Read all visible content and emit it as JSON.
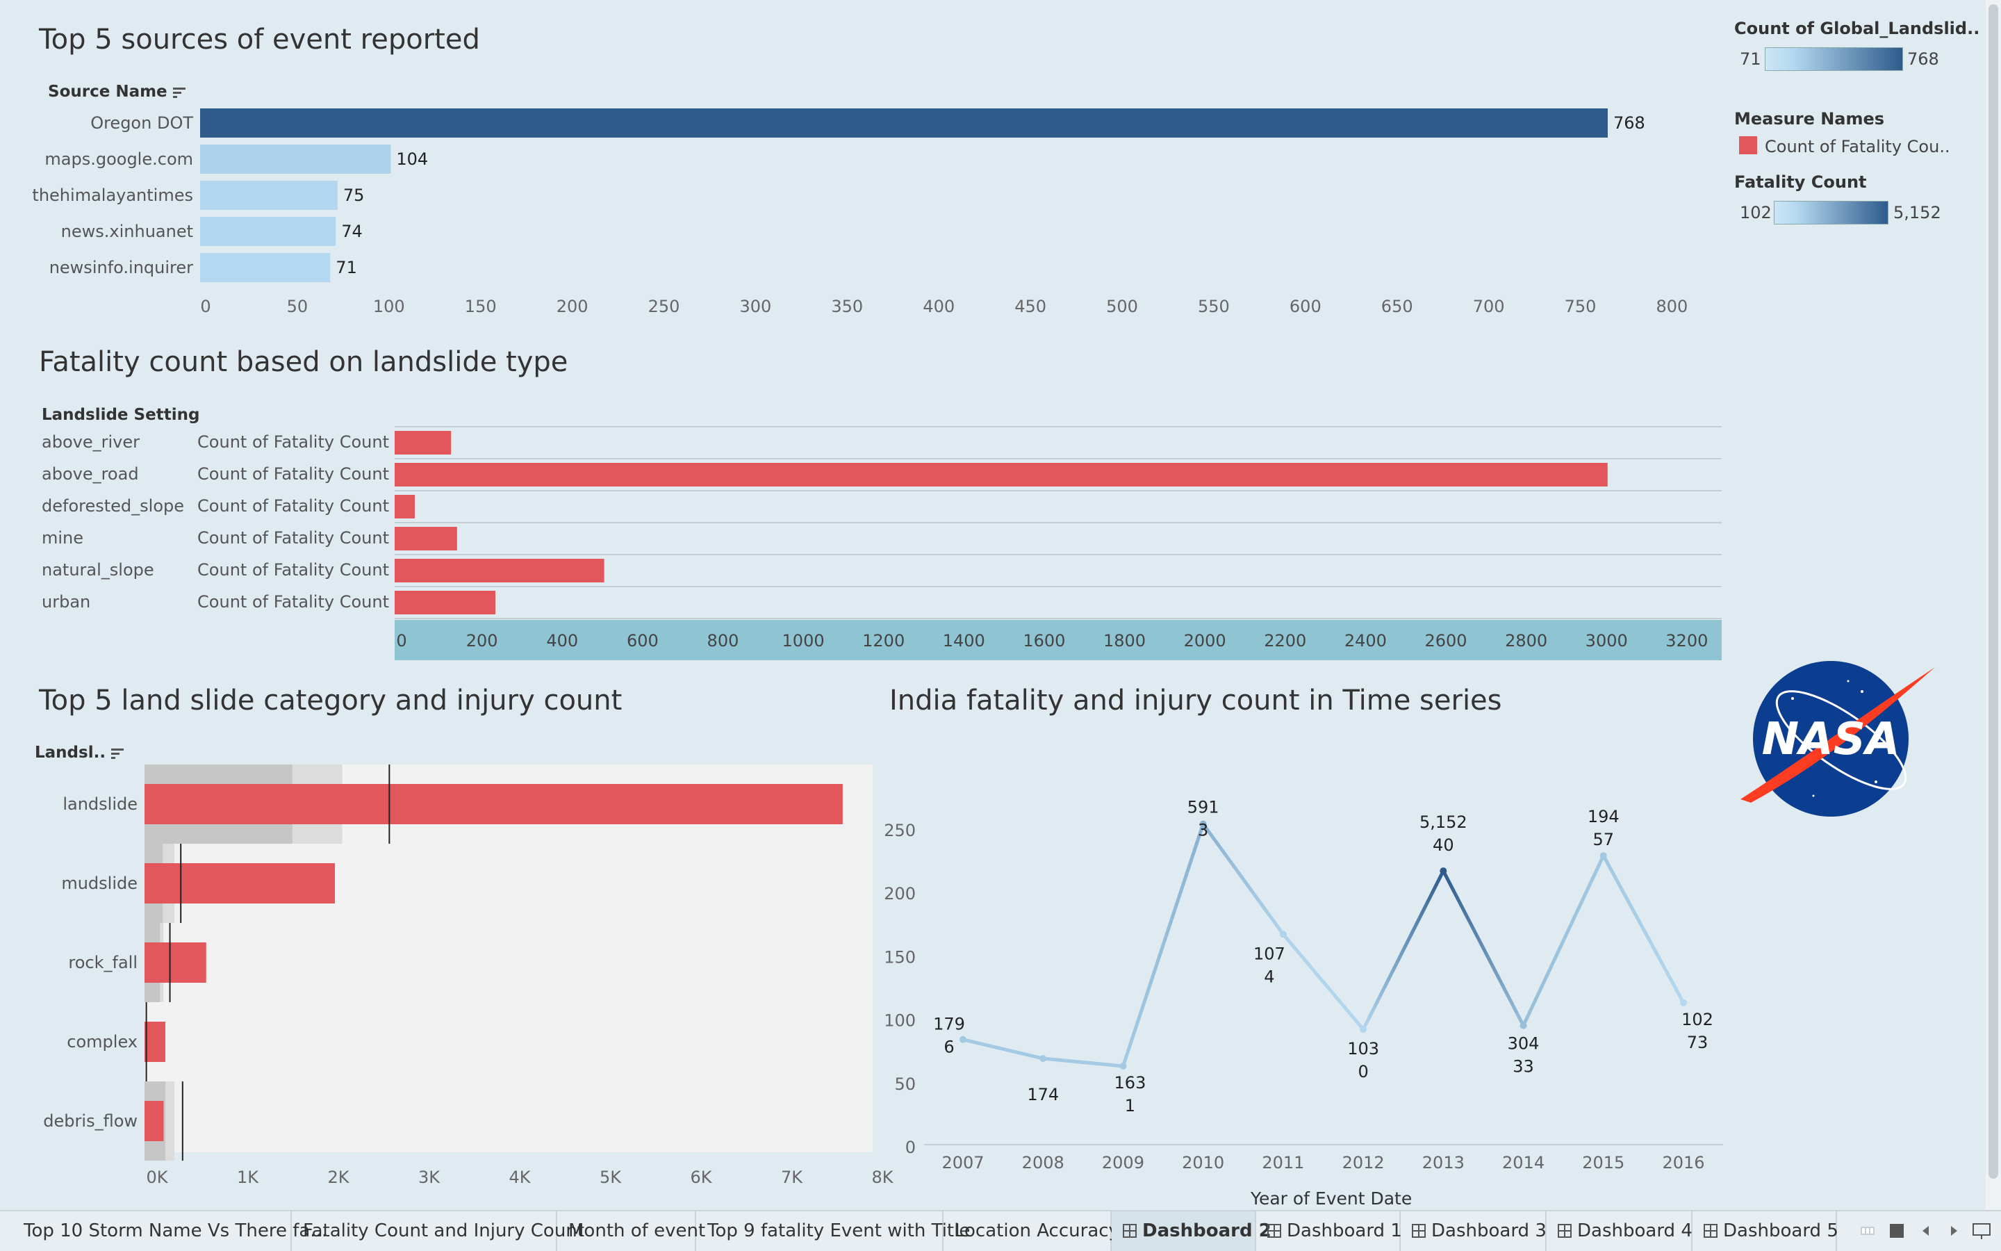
{
  "sources_chart": {
    "title": "Top 5 sources of event reported",
    "header": "Source Name",
    "x_ticks": [
      "0",
      "50",
      "100",
      "150",
      "200",
      "250",
      "300",
      "350",
      "400",
      "450",
      "500",
      "550",
      "600",
      "650",
      "700",
      "750",
      "800"
    ]
  },
  "setting_chart": {
    "title": "Fatality count based on landslide type",
    "header": "Landslide Setting",
    "measure_label": "Count of Fatality Count",
    "x_ticks": [
      "0",
      "200",
      "400",
      "600",
      "800",
      "1000",
      "1200",
      "1400",
      "1600",
      "1800",
      "2000",
      "2200",
      "2400",
      "2600",
      "2800",
      "3000",
      "3200"
    ]
  },
  "category_chart": {
    "title": "Top 5 land slide category and injury count",
    "header": "Landsl..",
    "x_ticks": [
      "0K",
      "1K",
      "2K",
      "3K",
      "4K",
      "5K",
      "6K",
      "7K",
      "8K"
    ]
  },
  "india_chart": {
    "title": "India fatality and injury count in Time series",
    "x_axis_title": "Year of Event Date",
    "y_ticks": [
      "250",
      "200",
      "150",
      "100",
      "50",
      "0"
    ]
  },
  "legend": {
    "count_title": "Count of Global_Landslid..",
    "count_min": "71",
    "count_max": "768",
    "measure_title": "Measure Names",
    "measure_item": "Count of Fatality Cou..",
    "fatality_title": "Fatality Count",
    "fatality_min": "102",
    "fatality_max": "5,152"
  },
  "logo": {
    "text": "NASA"
  },
  "colors": {
    "dark_blue": "#2e5b8c",
    "light_blue": "#b4d8ef",
    "red": "#e2575c",
    "axis_band": "#8fc4d3",
    "background": "#dfebf1"
  },
  "tabs": [
    {
      "label": "Top 10 Storm Name Vs There fa..."
    },
    {
      "label": "Fatality Count and Injury Count"
    },
    {
      "label": "Month of event"
    },
    {
      "label": "Top 9 fatality Event with Title"
    },
    {
      "label": "Location Accuracy"
    },
    {
      "label": "Dashboard 2"
    },
    {
      "label": "Dashboard 1"
    },
    {
      "label": "Dashboard 3"
    },
    {
      "label": "Dashboard 4"
    },
    {
      "label": "Dashboard 5"
    }
  ],
  "chart_data": [
    {
      "type": "bar",
      "title": "Top 5 sources of event reported",
      "ylabel": "Source Name",
      "categories": [
        "Oregon DOT",
        "maps.google.com",
        "thehimalayantimes",
        "news.xinhuanet",
        "newsinfo.inquirer"
      ],
      "values": [
        768,
        104,
        75,
        74,
        71
      ],
      "data_labels": [
        "768",
        "104",
        "75",
        "74",
        "71"
      ],
      "xlim": [
        0,
        800
      ]
    },
    {
      "type": "bar",
      "title": "Fatality count based on landslide type",
      "ylabel": "Landslide Setting",
      "categories": [
        "above_river",
        "above_road",
        "deforested_slope",
        "mine",
        "natural_slope",
        "urban"
      ],
      "series": [
        {
          "name": "Count of Fatality Count",
          "values": [
            140,
            3010,
            50,
            155,
            520,
            250
          ]
        }
      ],
      "xlim": [
        0,
        3300
      ]
    },
    {
      "type": "bar",
      "title": "Top 5 land slide category and injury count",
      "ylabel": "Landsl..",
      "categories": [
        "landslide",
        "mudslide",
        "rock_fall",
        "complex",
        "debris_flow"
      ],
      "values": [
        7700,
        2100,
        680,
        230,
        210
      ],
      "reference_lines": [
        2700,
        400,
        280,
        20,
        420
      ],
      "band_inner": [
        1630,
        200,
        170,
        0,
        230
      ],
      "band_outer": [
        2180,
        330,
        210,
        0,
        330
      ],
      "xlim": [
        0,
        8000
      ]
    },
    {
      "type": "line",
      "title": "India fatality and injury count in Time series",
      "xlabel": "Year of Event Date",
      "x": [
        "2007",
        "2008",
        "2009",
        "2010",
        "2011",
        "2012",
        "2013",
        "2014",
        "2015",
        "2016"
      ],
      "values": [
        72,
        57,
        51,
        242,
        155,
        80,
        205,
        83,
        217,
        101
      ],
      "label_top": [
        "179",
        "174",
        "163",
        "591",
        "107",
        "103",
        "5,152",
        "304",
        "194",
        "102"
      ],
      "label_bottom": [
        "6",
        "",
        "1",
        "3",
        "4",
        "0",
        "40",
        "33",
        "57",
        "73"
      ],
      "color_values": [
        179,
        174,
        163,
        591,
        107,
        103,
        5152,
        304,
        194,
        102
      ],
      "ylim": [
        0,
        250
      ]
    }
  ]
}
